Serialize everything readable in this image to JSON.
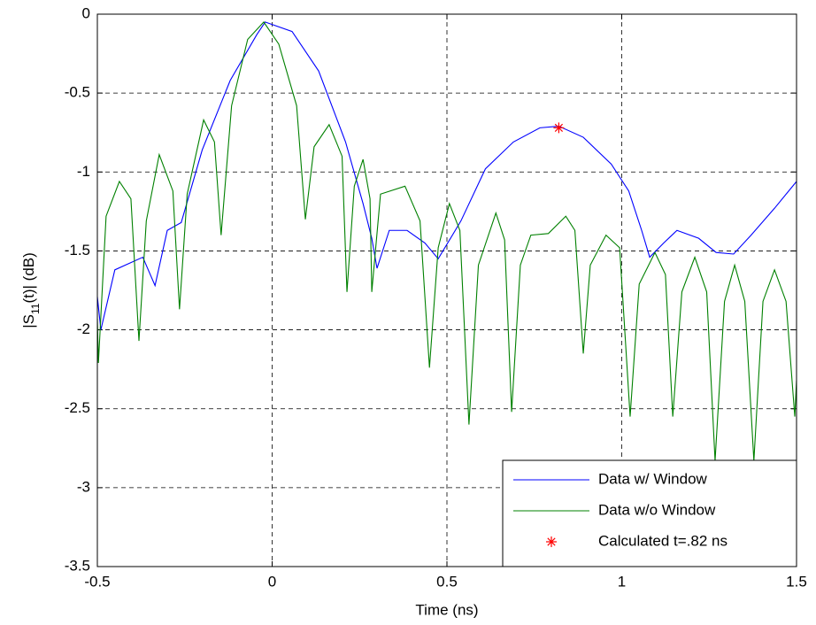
{
  "chart_data": {
    "type": "line",
    "xlabel": "Time (ns)",
    "ylabel": {
      "main": "|S",
      "sub": "11",
      "rest": "(t)| (dB)"
    },
    "xlim": [
      -0.5,
      1.5
    ],
    "ylim": [
      -3.5,
      0
    ],
    "xticks": [
      -0.5,
      0,
      0.5,
      1,
      1.5
    ],
    "yticks": [
      -3.5,
      -3,
      -2.5,
      -2,
      -1.5,
      -1,
      -0.5,
      0
    ],
    "grid": true,
    "legend": "lower right",
    "series": [
      {
        "name": "Data w/ Window",
        "color": "#0000ff",
        "marker": "none",
        "x": [
          -0.5,
          -0.49,
          -0.45,
          -0.37,
          -0.335,
          -0.3,
          -0.26,
          -0.2,
          -0.12,
          -0.044,
          -0.02,
          0.057,
          0.133,
          0.21,
          0.26,
          0.285,
          0.3,
          0.335,
          0.386,
          0.437,
          0.475,
          0.54,
          0.61,
          0.69,
          0.766,
          0.82,
          0.89,
          0.97,
          1.02,
          1.057,
          1.08,
          1.12,
          1.158,
          1.22,
          1.27,
          1.32,
          1.37,
          1.437,
          1.5
        ],
        "values": [
          -1.79,
          -2.0,
          -1.62,
          -1.54,
          -1.72,
          -1.37,
          -1.32,
          -0.86,
          -0.42,
          -0.13,
          -0.05,
          -0.11,
          -0.36,
          -0.81,
          -1.2,
          -1.42,
          -1.61,
          -1.37,
          -1.37,
          -1.45,
          -1.55,
          -1.31,
          -0.98,
          -0.81,
          -0.72,
          -0.71,
          -0.78,
          -0.95,
          -1.12,
          -1.37,
          -1.54,
          -1.45,
          -1.37,
          -1.42,
          -1.51,
          -1.52,
          -1.4,
          -1.23,
          -1.06
        ]
      },
      {
        "name": "Data w/o Window",
        "color": "#008000",
        "marker": "none",
        "x": [
          -0.5,
          -0.497,
          -0.475,
          -0.437,
          -0.404,
          -0.381,
          -0.36,
          -0.323,
          -0.284,
          -0.265,
          -0.243,
          -0.196,
          -0.165,
          -0.146,
          -0.116,
          -0.07,
          -0.024,
          0.019,
          0.07,
          0.095,
          0.12,
          0.163,
          0.2,
          0.214,
          0.235,
          0.26,
          0.28,
          0.285,
          0.31,
          0.38,
          0.423,
          0.45,
          0.475,
          0.507,
          0.537,
          0.563,
          0.59,
          0.64,
          0.665,
          0.685,
          0.71,
          0.74,
          0.79,
          0.84,
          0.866,
          0.89,
          0.91,
          0.955,
          0.994,
          1.024,
          1.05,
          1.095,
          1.125,
          1.146,
          1.172,
          1.209,
          1.243,
          1.267,
          1.294,
          1.323,
          1.352,
          1.378,
          1.404,
          1.437,
          1.47,
          1.495,
          1.5
        ],
        "values": [
          -1.93,
          -2.21,
          -1.28,
          -1.06,
          -1.17,
          -2.07,
          -1.31,
          -0.89,
          -1.12,
          -1.87,
          -1.14,
          -0.67,
          -0.81,
          -1.4,
          -0.58,
          -0.16,
          -0.05,
          -0.19,
          -0.58,
          -1.3,
          -0.84,
          -0.7,
          -0.9,
          -1.76,
          -1.09,
          -0.92,
          -1.17,
          -1.76,
          -1.14,
          -1.09,
          -1.31,
          -2.24,
          -1.48,
          -1.2,
          -1.37,
          -2.6,
          -1.59,
          -1.26,
          -1.43,
          -2.52,
          -1.59,
          -1.4,
          -1.39,
          -1.28,
          -1.37,
          -2.15,
          -1.59,
          -1.4,
          -1.48,
          -2.55,
          -1.71,
          -1.51,
          -1.65,
          -2.55,
          -1.76,
          -1.54,
          -1.76,
          -2.83,
          -1.82,
          -1.59,
          -1.82,
          -2.83,
          -1.82,
          -1.62,
          -1.82,
          -2.55,
          -2.32
        ]
      },
      {
        "name": "Calculated t=.82 ns",
        "color": "#ff0000",
        "marker": "*",
        "x": [
          0.82
        ],
        "values": [
          -0.72
        ]
      }
    ]
  }
}
